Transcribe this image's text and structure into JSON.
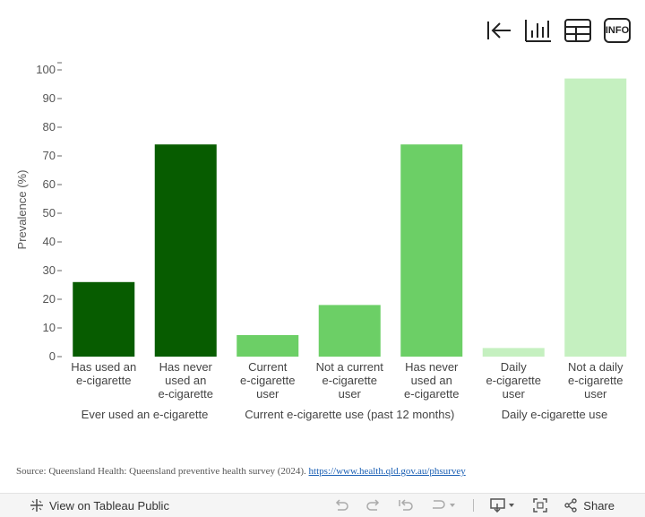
{
  "toolbar": {
    "info_label": "INFO",
    "icons": [
      "first-page-icon",
      "bar-chart-icon",
      "table-icon",
      "info-icon"
    ]
  },
  "colors": {
    "group1": "#075c00",
    "group2": "#6ccf66",
    "group3": "#c5f0c0"
  },
  "chart_data": {
    "type": "bar",
    "ylabel": "Prevalence (%)",
    "ylim": [
      0,
      100
    ],
    "yticks": [
      0,
      10,
      20,
      30,
      40,
      50,
      60,
      70,
      80,
      90,
      100
    ],
    "groups": [
      {
        "name": "Ever used an e-cigarette",
        "color": "#075c00",
        "bars": [
          {
            "label": [
              "Has used an",
              "e-cigarette"
            ],
            "value": 26
          },
          {
            "label": [
              "Has never",
              "used an",
              "e-cigarette"
            ],
            "value": 74
          }
        ]
      },
      {
        "name": "Current e-cigarette use (past 12 months)",
        "color": "#6ccf66",
        "bars": [
          {
            "label": [
              "Current",
              "e-cigarette",
              "user"
            ],
            "value": 7.5
          },
          {
            "label": [
              "Not a current",
              "e-cigarette",
              "user"
            ],
            "value": 18
          },
          {
            "label": [
              "Has never",
              "used an",
              "e-cigarette"
            ],
            "value": 74
          }
        ]
      },
      {
        "name": "Daily e-cigarette use",
        "color": "#c5f0c0",
        "bars": [
          {
            "label": [
              "Daily",
              "e-cigarette",
              "user"
            ],
            "value": 3
          },
          {
            "label": [
              "Not a daily",
              "e-cigarette",
              "user"
            ],
            "value": 97
          }
        ]
      }
    ]
  },
  "source": {
    "text": "Source: Queensland Health: Queensland preventive health survey (2024).",
    "link": "https://www.health.qld.gov.au/phsurvey"
  },
  "footer": {
    "view_label": "View on Tableau Public",
    "share_label": "Share"
  }
}
